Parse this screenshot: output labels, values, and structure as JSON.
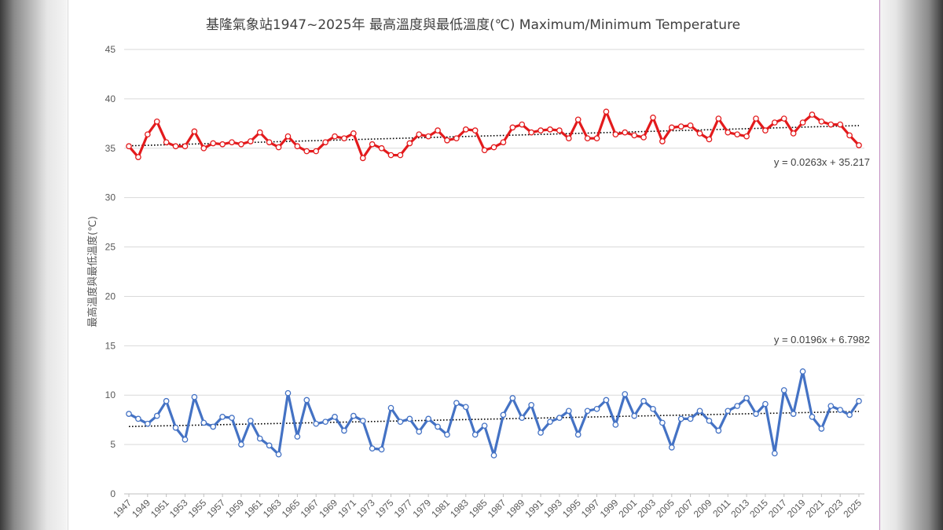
{
  "chart_data": {
    "type": "line",
    "title": "基隆氣象站1947~2025年 最高溫度與最低溫度(℃) Maximum/Minimum Temperature",
    "ylabel": "最高溫度與最低溫度(℃)",
    "xlabel": "",
    "ylim": [
      0,
      45
    ],
    "yticks": [
      0,
      5,
      10,
      15,
      20,
      25,
      30,
      35,
      40,
      45
    ],
    "grid": true,
    "x_start": 1947,
    "x_end": 2025,
    "x_tick_labels": [
      "1947",
      "1949",
      "1951",
      "1953",
      "1955",
      "1957",
      "1959",
      "1961",
      "1963",
      "1965",
      "1967",
      "1969",
      "1971",
      "1973",
      "1975",
      "1977",
      "1979",
      "1981",
      "1983",
      "1985",
      "1987",
      "1989",
      "1991",
      "1993",
      "1995",
      "1997",
      "1999",
      "2001",
      "2003",
      "2005",
      "2007",
      "2009",
      "2011",
      "2013",
      "2015",
      "2017",
      "2019",
      "2021",
      "2023",
      "2025"
    ],
    "series": [
      {
        "color": "#e31a1c",
        "values": [
          35.2,
          34.1,
          36.4,
          37.7,
          35.6,
          35.2,
          35.2,
          36.7,
          35.0,
          35.5,
          35.4,
          35.6,
          35.4,
          35.7,
          36.6,
          35.6,
          35.1,
          36.2,
          35.2,
          34.7,
          34.7,
          35.6,
          36.2,
          36.0,
          36.5,
          34.0,
          35.4,
          35.0,
          34.3,
          34.3,
          35.5,
          36.4,
          36.2,
          36.8,
          35.8,
          36.0,
          36.9,
          36.8,
          34.8,
          35.1,
          35.6,
          37.1,
          37.4,
          36.6,
          36.8,
          36.9,
          36.8,
          36.0,
          37.9,
          36.0,
          36.0,
          38.7,
          36.4,
          36.6,
          36.3,
          36.1,
          38.1,
          35.7,
          37.1,
          37.2,
          37.3,
          36.5,
          35.9,
          38.0,
          36.6,
          36.4,
          36.2,
          38.0,
          36.8,
          37.6,
          38.0,
          36.5,
          37.6,
          38.4,
          37.7,
          37.4,
          37.4,
          36.3,
          35.3
        ],
        "trendline": {
          "equation": "y = 0.0263x + 35.217",
          "slope": 0.0263,
          "intercept": 35.217
        }
      },
      {
        "color": "#4472c4",
        "values": [
          8.1,
          7.6,
          7.1,
          7.9,
          9.4,
          6.7,
          5.5,
          9.8,
          7.2,
          6.8,
          7.8,
          7.7,
          5.0,
          7.4,
          5.6,
          4.9,
          4.0,
          10.2,
          5.8,
          9.5,
          7.1,
          7.3,
          7.8,
          6.4,
          7.9,
          7.4,
          4.6,
          4.5,
          8.7,
          7.3,
          7.6,
          6.3,
          7.6,
          6.8,
          6.0,
          9.2,
          8.8,
          6.0,
          6.9,
          3.9,
          8.0,
          9.7,
          7.7,
          9.0,
          6.2,
          7.3,
          7.7,
          8.4,
          6.0,
          8.4,
          8.6,
          9.5,
          7.0,
          10.1,
          7.9,
          9.4,
          8.6,
          7.2,
          4.7,
          7.6,
          7.6,
          8.4,
          7.4,
          6.4,
          8.4,
          8.9,
          9.7,
          8.1,
          9.1,
          4.1,
          10.5,
          8.1,
          12.4,
          7.8,
          6.6,
          8.9,
          8.5,
          8.0,
          9.4
        ],
        "trendline": {
          "equation": "y = 0.0196x + 6.7982",
          "slope": 0.0196,
          "intercept": 6.7982
        }
      }
    ]
  }
}
